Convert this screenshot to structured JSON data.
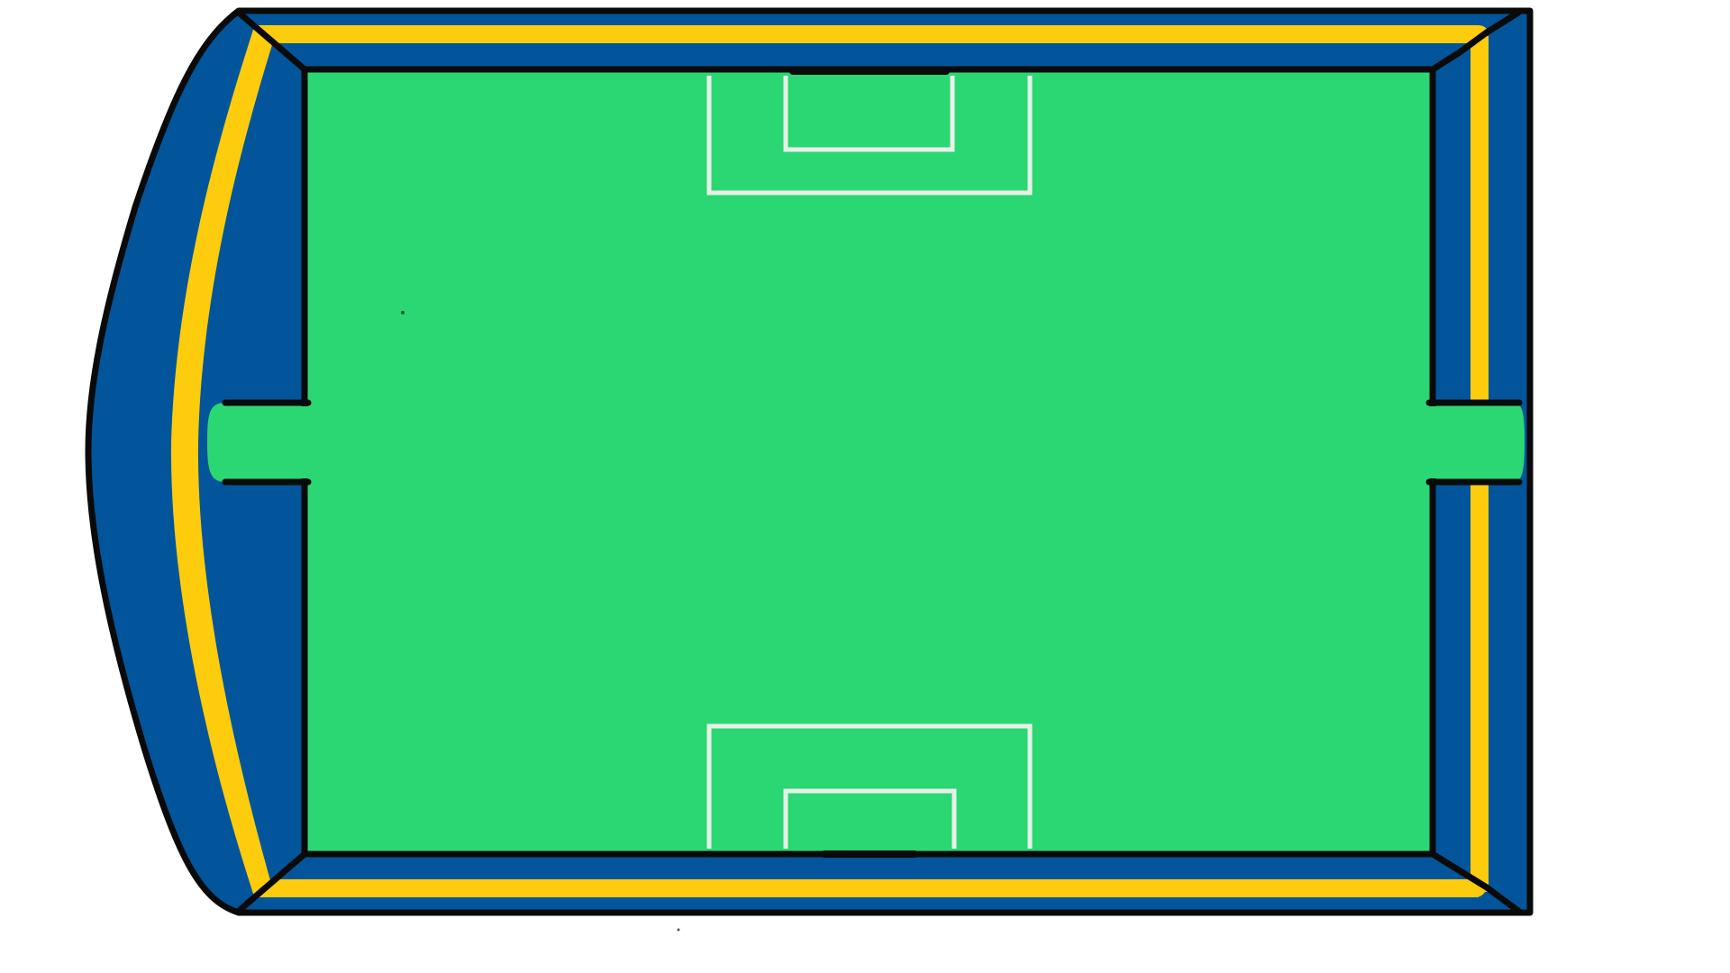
{
  "colors": {
    "background": "#ffffff",
    "stand_blue": "#02559a",
    "stand_yellow": "#fccc0d",
    "pitch_green": "#2bd773",
    "pitch_lines": "#e8f0e8",
    "outline": "#0a0a0a"
  },
  "elements": {
    "stands": "stadium-stands",
    "pitch": "pitch",
    "top_goal_area": "top-goal-area",
    "bottom_goal_area": "bottom-goal-area",
    "left_tunnel": "left-tunnel",
    "right_tunnel": "right-tunnel"
  }
}
